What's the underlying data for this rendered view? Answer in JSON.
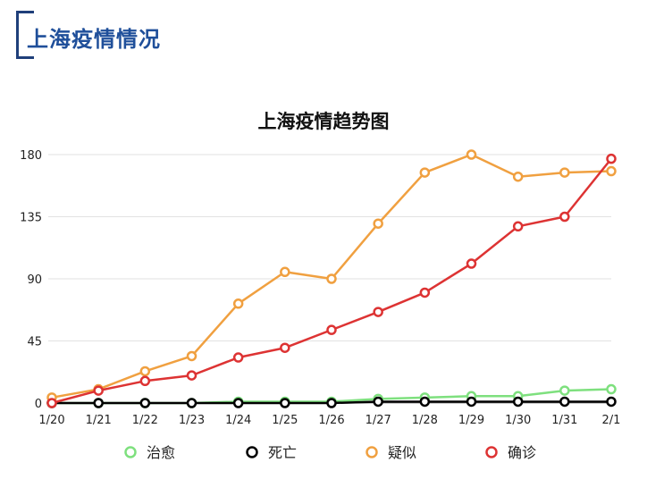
{
  "page": {
    "title": "上海疫情情况"
  },
  "chart_data": {
    "type": "line",
    "title": "上海疫情趋势图",
    "xlabel": "",
    "ylabel": "",
    "categories": [
      "1/20",
      "1/21",
      "1/22",
      "1/23",
      "1/24",
      "1/25",
      "1/26",
      "1/27",
      "1/28",
      "1/29",
      "1/30",
      "1/31",
      "2/1"
    ],
    "yticks": [
      0,
      45,
      90,
      135,
      180
    ],
    "ylim": [
      0,
      180
    ],
    "grid": true,
    "legend_position": "bottom",
    "series": [
      {
        "name": "治愈",
        "color": "#7ee07e",
        "values": [
          0,
          0,
          0,
          0,
          1,
          1,
          1,
          3,
          4,
          5,
          5,
          9,
          10
        ]
      },
      {
        "name": "死亡",
        "color": "#000000",
        "values": [
          0,
          0,
          0,
          0,
          0,
          0,
          0,
          1,
          1,
          1,
          1,
          1,
          1
        ]
      },
      {
        "name": "疑似",
        "color": "#f0a040",
        "values": [
          4,
          10,
          23,
          34,
          72,
          95,
          90,
          130,
          167,
          180,
          164,
          167,
          168
        ]
      },
      {
        "name": "确诊",
        "color": "#dd3333",
        "values": [
          0,
          9,
          16,
          20,
          33,
          40,
          53,
          66,
          80,
          101,
          128,
          135,
          177
        ]
      }
    ]
  }
}
